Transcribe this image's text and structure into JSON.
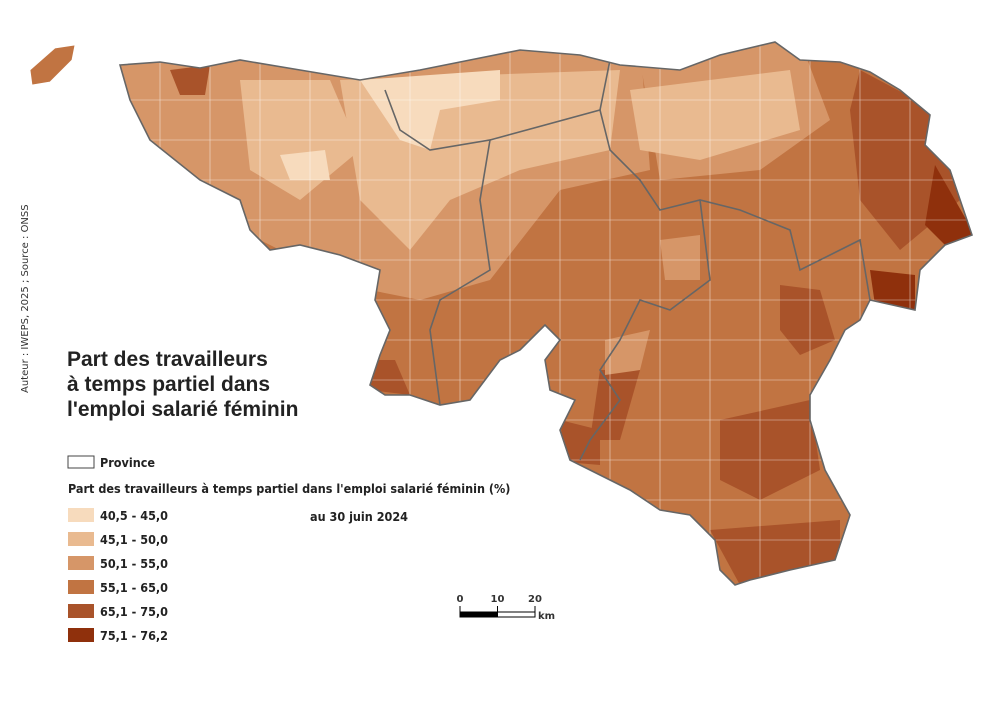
{
  "title": {
    "lines": [
      "Part des travailleurs",
      "à temps partiel dans",
      "l'emploi salarié féminin"
    ]
  },
  "legend": {
    "province": "Province",
    "title": "Part des travailleurs à temps partiel dans l'emploi salarié féminin (%)",
    "date": "au 30 juin 2024",
    "classes": [
      {
        "label": "40,5 - 45,0",
        "color": "#f7dbbd"
      },
      {
        "label": "45,1 - 50,0",
        "color": "#e9ba90"
      },
      {
        "label": "50,1 - 55,0",
        "color": "#d69668"
      },
      {
        "label": "55,1 - 65,0",
        "color": "#c17442"
      },
      {
        "label": "65,1 - 75,0",
        "color": "#a9532a"
      },
      {
        "label": "75,1 - 76,2",
        "color": "#8f300c"
      }
    ]
  },
  "scale_bar": {
    "ticks": [
      0,
      10,
      20
    ],
    "unit": "km"
  },
  "credit": "Auteur : IWEPS, 2025 ; Source : ONSS"
}
